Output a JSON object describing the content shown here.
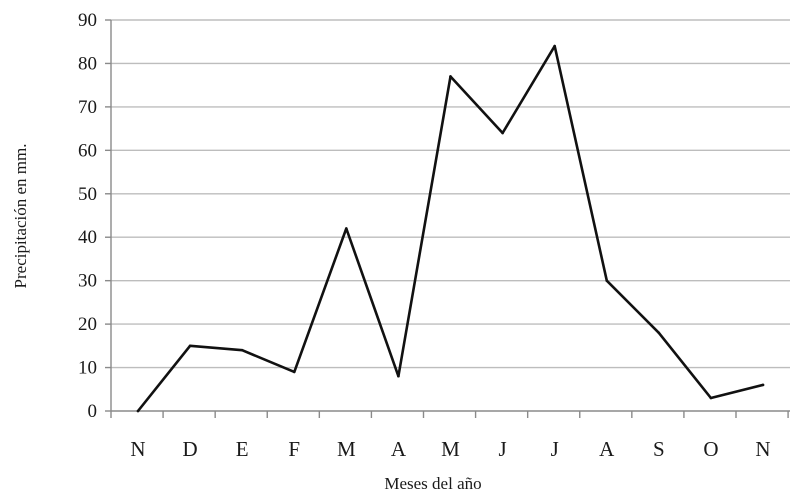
{
  "chart_data": {
    "type": "line",
    "title": "",
    "xlabel": "Meses del año",
    "ylabel": "Precipitación en mm.",
    "ylim": [
      0,
      90
    ],
    "yticks": [
      0,
      10,
      20,
      30,
      40,
      50,
      60,
      70,
      80,
      90
    ],
    "grid": true,
    "legend": "none",
    "categories": [
      "N",
      "D",
      "E",
      "F",
      "M",
      "A",
      "M",
      "J",
      "J",
      "A",
      "S",
      "O",
      "N"
    ],
    "series": [
      {
        "values": [
          0,
          15,
          14,
          9,
          42,
          8,
          77,
          64,
          84,
          30,
          18,
          3,
          6
        ],
        "color": "#111111"
      }
    ],
    "colors": {
      "grid": "#bdbdbd",
      "axis": "#8a8a8a",
      "line": "#111111"
    }
  }
}
